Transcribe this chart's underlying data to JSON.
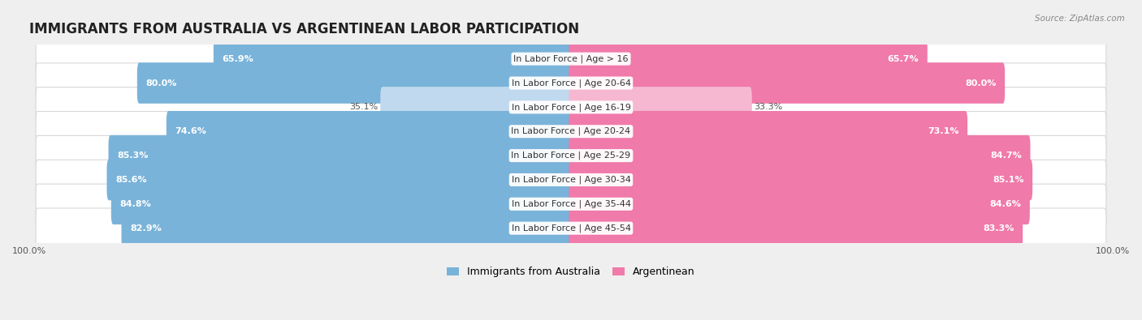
{
  "title": "IMMIGRANTS FROM AUSTRALIA VS ARGENTINEAN LABOR PARTICIPATION",
  "source": "Source: ZipAtlas.com",
  "categories": [
    "In Labor Force | Age > 16",
    "In Labor Force | Age 20-64",
    "In Labor Force | Age 16-19",
    "In Labor Force | Age 20-24",
    "In Labor Force | Age 25-29",
    "In Labor Force | Age 30-34",
    "In Labor Force | Age 35-44",
    "In Labor Force | Age 45-54"
  ],
  "australia_values": [
    65.9,
    80.0,
    35.1,
    74.6,
    85.3,
    85.6,
    84.8,
    82.9
  ],
  "argentina_values": [
    65.7,
    80.0,
    33.3,
    73.1,
    84.7,
    85.1,
    84.6,
    83.3
  ],
  "australia_color": "#7ab3d9",
  "argentina_color": "#f07aaa",
  "australia_color_light": "#c0d9ee",
  "argentina_color_light": "#f5b8d0",
  "bar_height": 0.62,
  "background_color": "#efefef",
  "legend_australia": "Immigrants from Australia",
  "legend_argentina": "Argentinean",
  "title_fontsize": 12,
  "label_fontsize": 8,
  "value_fontsize": 8,
  "axis_label_fontsize": 8,
  "low_threshold": 50
}
